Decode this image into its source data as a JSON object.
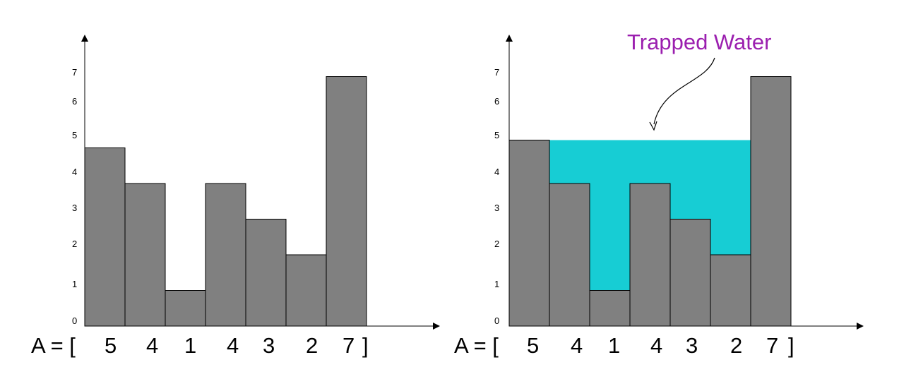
{
  "colors": {
    "bar_fill": "#808080",
    "bar_stroke": "#000000",
    "water_fill": "#17cdd4",
    "axis": "#000000",
    "callout_text": "#9b1faf"
  },
  "y_ticks": [
    "0",
    "1",
    "2",
    "3",
    "4",
    "5",
    "6",
    "7"
  ],
  "array": {
    "prefix": "A = [",
    "values": [
      "5",
      "4",
      "1",
      "4",
      "3",
      "2",
      "7"
    ],
    "suffix": "]"
  },
  "callout": {
    "text": "Trapped Water"
  },
  "chart_data": [
    {
      "type": "bar",
      "categories": [
        "5",
        "4",
        "1",
        "4",
        "3",
        "2",
        "7"
      ],
      "values": [
        5,
        4,
        1,
        4,
        3,
        2,
        7
      ],
      "title": "",
      "xlabel": "",
      "ylabel": "",
      "ylim": [
        0,
        7
      ]
    },
    {
      "type": "bar",
      "categories": [
        "5",
        "4",
        "1",
        "4",
        "3",
        "2",
        "7"
      ],
      "series": [
        {
          "values": [
            5,
            4,
            1,
            4,
            3,
            2,
            7
          ]
        },
        {
          "values": [
            0,
            1,
            4,
            1,
            2,
            3,
            0
          ]
        }
      ],
      "title": "",
      "xlabel": "",
      "ylabel": "",
      "ylim": [
        0,
        7
      ],
      "annotations": [
        "Trapped Water"
      ]
    }
  ]
}
